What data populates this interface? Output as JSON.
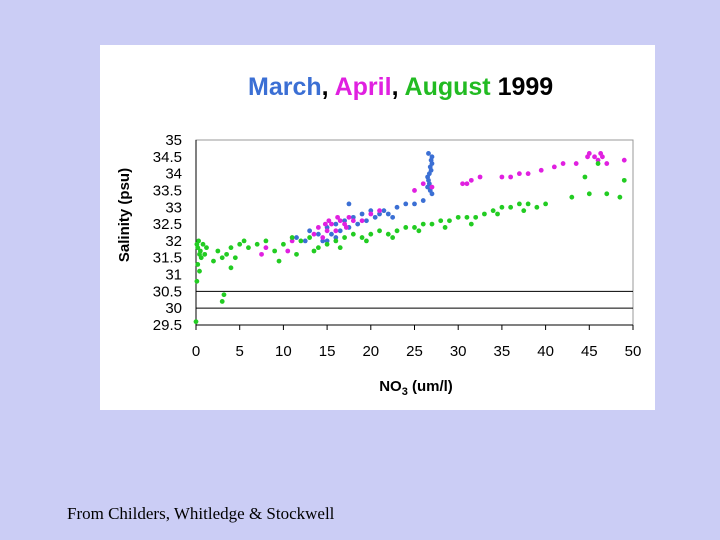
{
  "slide": {
    "credit": "From Childers, Whitledge & Stockwell"
  },
  "chart_data": {
    "type": "scatter",
    "title_parts": [
      {
        "text": "March",
        "color": "#3b6fd4"
      },
      {
        "text": ", ",
        "color": "#000000"
      },
      {
        "text": "April",
        "color": "#e020e0"
      },
      {
        "text": ", ",
        "color": "#000000"
      },
      {
        "text": "August",
        "color": "#22bb22"
      },
      {
        "text": " 1999",
        "color": "#000000"
      }
    ],
    "xlabel_main": "NO",
    "xlabel_sub": "3",
    "xlabel_rest": " (um/l)",
    "ylabel": "Salinity (psu)",
    "xlim": [
      0,
      50
    ],
    "ylim": [
      29.5,
      35
    ],
    "x_ticks": [
      "0",
      "5",
      "10",
      "15",
      "20",
      "25",
      "30",
      "35",
      "40",
      "45",
      "50"
    ],
    "y_ticks": [
      "35",
      "34.5",
      "34",
      "33.5",
      "33",
      "32.5",
      "32",
      "31.5",
      "31",
      "30.5",
      "30",
      "29.5"
    ],
    "gridlines_y": [
      30,
      30.5
    ],
    "series": [
      {
        "name": "March",
        "color": "#3b6fd4",
        "points": [
          [
            11.5,
            32.1
          ],
          [
            12.5,
            32.0
          ],
          [
            13.0,
            32.3
          ],
          [
            14.0,
            32.2
          ],
          [
            14.5,
            32.0
          ],
          [
            15.0,
            32.4
          ],
          [
            15.5,
            32.2
          ],
          [
            16.0,
            32.5
          ],
          [
            16.5,
            32.3
          ],
          [
            17.0,
            32.6
          ],
          [
            17.5,
            32.4
          ],
          [
            18.0,
            32.7
          ],
          [
            18.5,
            32.5
          ],
          [
            19.0,
            32.8
          ],
          [
            19.5,
            32.6
          ],
          [
            20.0,
            32.9
          ],
          [
            20.5,
            32.7
          ],
          [
            21.0,
            32.8
          ],
          [
            21.5,
            32.9
          ],
          [
            22.0,
            32.8
          ],
          [
            22.5,
            32.7
          ],
          [
            23.0,
            33.0
          ],
          [
            24.0,
            33.1
          ],
          [
            25.0,
            33.1
          ],
          [
            26.0,
            33.2
          ],
          [
            17.5,
            33.1
          ],
          [
            16.0,
            32.1
          ],
          [
            15.0,
            32.0
          ],
          [
            26.5,
            33.6
          ],
          [
            26.6,
            33.8
          ],
          [
            26.7,
            34.0
          ],
          [
            26.8,
            34.2
          ],
          [
            26.9,
            34.4
          ],
          [
            27.0,
            34.5
          ],
          [
            26.5,
            33.9
          ],
          [
            26.7,
            33.7
          ],
          [
            26.9,
            34.1
          ],
          [
            27.0,
            34.3
          ],
          [
            26.6,
            34.6
          ],
          [
            26.8,
            33.5
          ],
          [
            27.0,
            33.4
          ]
        ]
      },
      {
        "name": "April",
        "color": "#e020e0",
        "points": [
          [
            7.5,
            31.6
          ],
          [
            8.0,
            31.8
          ],
          [
            10.5,
            31.7
          ],
          [
            11.0,
            32.0
          ],
          [
            13.5,
            32.2
          ],
          [
            14.0,
            32.4
          ],
          [
            14.5,
            32.1
          ],
          [
            15.0,
            32.3
          ],
          [
            15.5,
            32.5
          ],
          [
            16.0,
            32.3
          ],
          [
            16.5,
            32.6
          ],
          [
            17.0,
            32.5
          ],
          [
            17.5,
            32.7
          ],
          [
            18.0,
            32.6
          ],
          [
            15.2,
            32.6
          ],
          [
            16.2,
            32.7
          ],
          [
            14.8,
            32.5
          ],
          [
            17.2,
            32.4
          ],
          [
            19.0,
            32.6
          ],
          [
            20.0,
            32.8
          ],
          [
            21.0,
            32.9
          ],
          [
            25.0,
            33.5
          ],
          [
            26.0,
            33.7
          ],
          [
            27.0,
            33.6
          ],
          [
            30.5,
            33.7
          ],
          [
            31.0,
            33.7
          ],
          [
            31.5,
            33.8
          ],
          [
            32.5,
            33.9
          ],
          [
            35.0,
            33.9
          ],
          [
            36.0,
            33.9
          ],
          [
            37.0,
            34.0
          ],
          [
            38.0,
            34.0
          ],
          [
            39.5,
            34.1
          ],
          [
            41.0,
            34.2
          ],
          [
            42.0,
            34.3
          ],
          [
            43.5,
            34.3
          ],
          [
            44.8,
            34.5
          ],
          [
            45.0,
            34.6
          ],
          [
            45.6,
            34.5
          ],
          [
            46.0,
            34.4
          ],
          [
            46.3,
            34.6
          ],
          [
            46.5,
            34.5
          ],
          [
            47.0,
            34.3
          ],
          [
            49.0,
            34.4
          ]
        ]
      },
      {
        "name": "August",
        "color": "#22cc22",
        "points": [
          [
            0.0,
            29.6
          ],
          [
            0.1,
            31.9
          ],
          [
            0.2,
            31.8
          ],
          [
            0.3,
            32.0
          ],
          [
            0.4,
            31.6
          ],
          [
            0.5,
            31.7
          ],
          [
            0.6,
            31.5
          ],
          [
            0.8,
            31.9
          ],
          [
            1.0,
            31.6
          ],
          [
            1.2,
            31.8
          ],
          [
            0.2,
            31.3
          ],
          [
            0.4,
            31.1
          ],
          [
            0.1,
            30.8
          ],
          [
            2.0,
            31.4
          ],
          [
            2.5,
            31.7
          ],
          [
            3.0,
            31.5
          ],
          [
            3.5,
            31.6
          ],
          [
            4.0,
            31.8
          ],
          [
            4.5,
            31.5
          ],
          [
            5.0,
            31.9
          ],
          [
            5.5,
            32.0
          ],
          [
            6.0,
            31.8
          ],
          [
            3.0,
            30.2
          ],
          [
            3.2,
            30.4
          ],
          [
            4.0,
            31.2
          ],
          [
            7.0,
            31.9
          ],
          [
            8.0,
            32.0
          ],
          [
            9.0,
            31.7
          ],
          [
            10.0,
            31.9
          ],
          [
            11.0,
            32.1
          ],
          [
            12.0,
            32.0
          ],
          [
            13.0,
            32.1
          ],
          [
            14.0,
            31.8
          ],
          [
            15.0,
            31.9
          ],
          [
            16.0,
            32.0
          ],
          [
            17.0,
            32.1
          ],
          [
            18.0,
            32.2
          ],
          [
            19.0,
            32.1
          ],
          [
            20.0,
            32.2
          ],
          [
            21.0,
            32.3
          ],
          [
            22.0,
            32.2
          ],
          [
            23.0,
            32.3
          ],
          [
            24.0,
            32.4
          ],
          [
            25.0,
            32.4
          ],
          [
            26.0,
            32.5
          ],
          [
            27.0,
            32.5
          ],
          [
            28.0,
            32.6
          ],
          [
            29.0,
            32.6
          ],
          [
            30.0,
            32.7
          ],
          [
            31.0,
            32.7
          ],
          [
            32.0,
            32.7
          ],
          [
            33.0,
            32.8
          ],
          [
            34.0,
            32.9
          ],
          [
            35.0,
            33.0
          ],
          [
            36.0,
            33.0
          ],
          [
            37.0,
            33.1
          ],
          [
            38.0,
            33.1
          ],
          [
            39.0,
            33.0
          ],
          [
            40.0,
            33.1
          ],
          [
            43.0,
            33.3
          ],
          [
            45.0,
            33.4
          ],
          [
            47.0,
            33.4
          ],
          [
            48.5,
            33.3
          ],
          [
            49.0,
            33.8
          ],
          [
            9.5,
            31.4
          ],
          [
            11.5,
            31.6
          ],
          [
            13.5,
            31.7
          ],
          [
            16.5,
            31.8
          ],
          [
            19.5,
            32.0
          ],
          [
            22.5,
            32.1
          ],
          [
            25.5,
            32.3
          ],
          [
            28.5,
            32.4
          ],
          [
            31.5,
            32.5
          ],
          [
            34.5,
            32.8
          ],
          [
            37.5,
            32.9
          ],
          [
            44.5,
            33.9
          ],
          [
            46.0,
            34.3
          ]
        ]
      }
    ]
  }
}
